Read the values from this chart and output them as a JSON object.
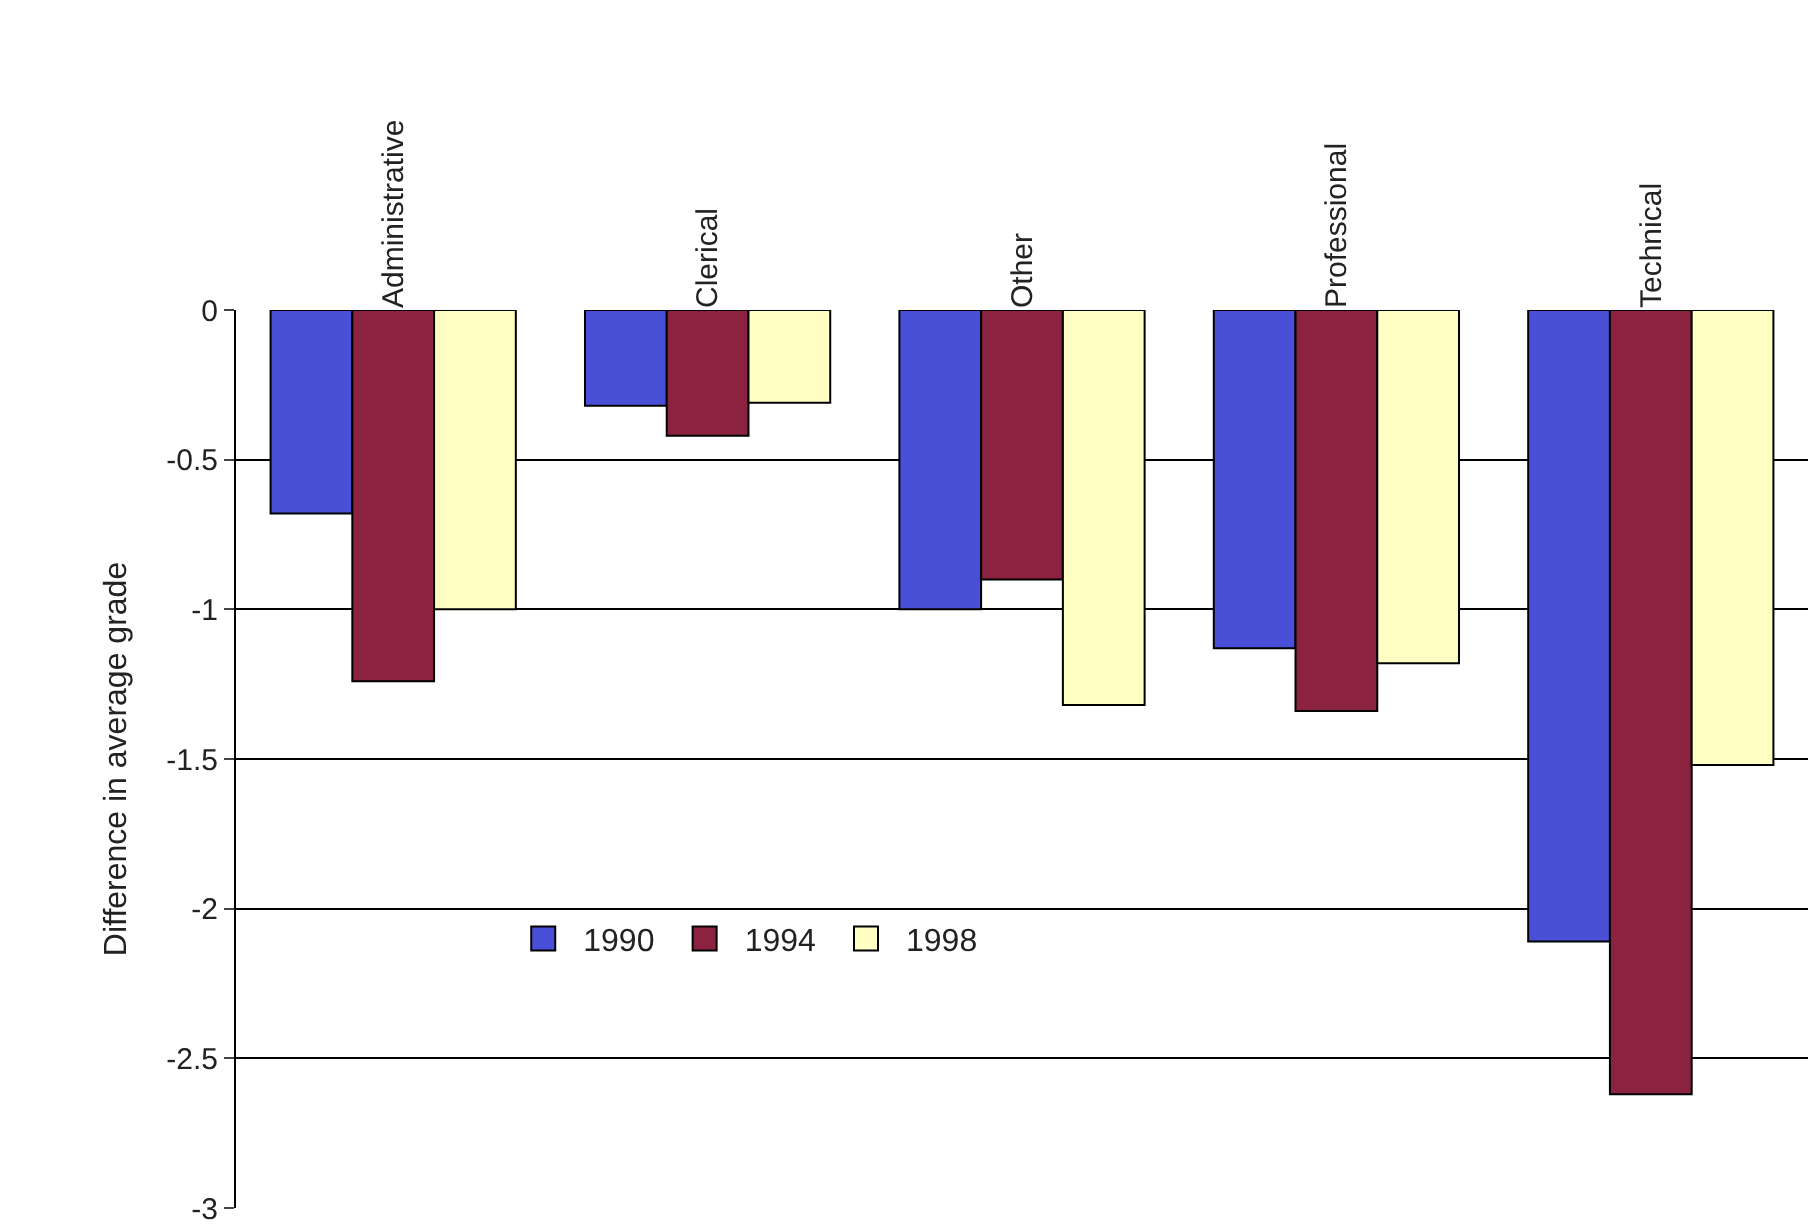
{
  "chart_data": {
    "type": "bar",
    "ylabel": "Difference in average grade",
    "categories": [
      "Administrative",
      "Clerical",
      "Other",
      "Professional",
      "Technical"
    ],
    "series": [
      {
        "name": "1990",
        "color": "#4a4fd8",
        "values": [
          -0.68,
          -0.32,
          -1.0,
          -1.13,
          -2.11
        ]
      },
      {
        "name": "1994",
        "color": "#8b2340",
        "values": [
          -1.24,
          -0.42,
          -0.9,
          -1.34,
          -2.62
        ]
      },
      {
        "name": "1998",
        "color": "#ffffc4",
        "values": [
          -1.0,
          -0.31,
          -1.32,
          -1.18,
          -1.52
        ]
      }
    ],
    "ylim": [
      -3,
      0
    ],
    "yticks": [
      -3,
      -2.5,
      -2,
      -1.5,
      -1,
      -0.5,
      0
    ],
    "grid": "y",
    "legend": "bottom left"
  }
}
